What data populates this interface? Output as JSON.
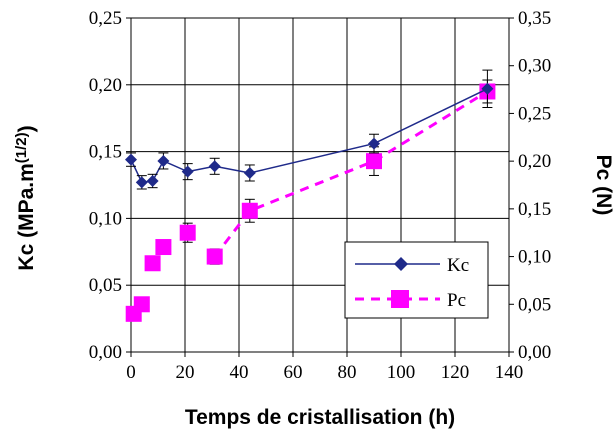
{
  "chart_data": {
    "type": "line",
    "title": "",
    "xlabel": "Temps de cristallisation (h)",
    "ylabel_left": "Kc (MPa.m(1/2))",
    "ylabel_left_main": "Kc (MPa.m",
    "ylabel_left_sup": "(1/2)",
    "ylabel_left_close": ")",
    "ylabel_right": "Pc (N)",
    "xlim": [
      0,
      140
    ],
    "ylim_left": [
      0,
      0.25
    ],
    "ylim_right": [
      0,
      0.35
    ],
    "x_ticks": [
      "0",
      "20",
      "40",
      "60",
      "80",
      "100",
      "120",
      "140"
    ],
    "y_left_ticks": [
      "0,00",
      "0,05",
      "0,10",
      "0,15",
      "0,20",
      "0,25"
    ],
    "y_right_ticks": [
      "0,00",
      "0,05",
      "0,10",
      "0,15",
      "0,20",
      "0,25",
      "0,30",
      "0,35"
    ],
    "grid": true,
    "legend_position": "lower-right",
    "series": [
      {
        "name": "Kc",
        "axis": "left",
        "color": "#1f2a8a",
        "line_style": "solid",
        "marker": "diamond",
        "x": [
          0,
          4,
          8,
          12,
          21,
          31,
          44,
          90,
          132
        ],
        "y": [
          0.144,
          0.127,
          0.128,
          0.143,
          0.135,
          0.139,
          0.134,
          0.156,
          0.197
        ],
        "error": [
          0.005,
          0.005,
          0.005,
          0.006,
          0.006,
          0.006,
          0.006,
          0.007,
          0.014
        ]
      },
      {
        "name": "Pc",
        "axis": "right",
        "color": "#ff00ff",
        "line_style": "dashed",
        "marker": "square",
        "x": [
          1,
          4,
          8,
          12,
          21,
          31,
          44,
          90,
          132
        ],
        "y": [
          0.04,
          0.05,
          0.093,
          0.11,
          0.125,
          0.1,
          0.148,
          0.2,
          0.273
        ],
        "error": [
          0.0,
          0.004,
          0.004,
          0.007,
          0.01,
          0.008,
          0.012,
          0.015,
          0.012
        ]
      }
    ]
  }
}
